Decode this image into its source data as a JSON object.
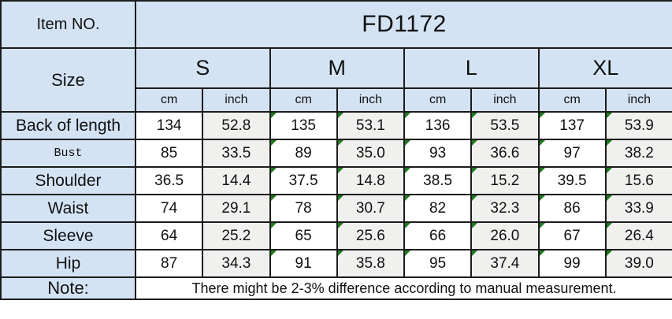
{
  "header": {
    "item_no_label": "Item NO.",
    "item_no_value": "FD1172"
  },
  "size_label": "Size",
  "sizes": [
    "S",
    "M",
    "L",
    "XL"
  ],
  "unit_labels": [
    "cm",
    "inch"
  ],
  "rows": [
    {
      "label": "Back of length",
      "values": [
        "134",
        "52.8",
        "135",
        "53.1",
        "136",
        "53.5",
        "137",
        "53.9"
      ]
    },
    {
      "label": "Bust",
      "values": [
        "85",
        "33.5",
        "89",
        "35.0",
        "93",
        "36.6",
        "97",
        "38.2"
      ]
    },
    {
      "label": "Shoulder",
      "values": [
        "36.5",
        "14.4",
        "37.5",
        "14.8",
        "38.5",
        "15.2",
        "39.5",
        "15.6"
      ]
    },
    {
      "label": "Waist",
      "values": [
        "74",
        "29.1",
        "78",
        "30.7",
        "82",
        "32.3",
        "86",
        "33.9"
      ]
    },
    {
      "label": "Sleeve",
      "values": [
        "64",
        "25.2",
        "65",
        "25.6",
        "66",
        "26.0",
        "67",
        "26.4"
      ]
    },
    {
      "label": "Hip",
      "values": [
        "87",
        "34.3",
        "91",
        "35.8",
        "95",
        "37.4",
        "99",
        "39.0"
      ]
    }
  ],
  "note": {
    "label": "Note:",
    "text": "There might be 2-3% difference according to manual measurement."
  },
  "colors": {
    "header_blue": "#d4e3f4",
    "inch_gray": "#f0f0ee",
    "border": "#1c1c1c",
    "comment_flag_green": "#1f7a1f"
  }
}
